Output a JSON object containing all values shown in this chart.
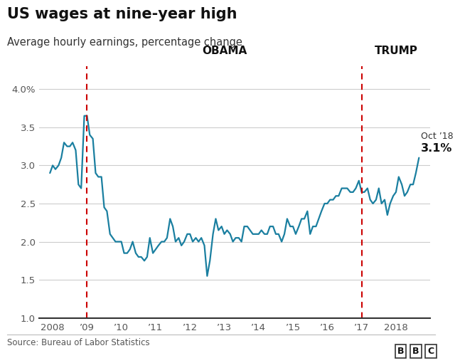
{
  "title": "US wages at nine-year high",
  "subtitle": "Average hourly earnings, percentage change",
  "source": "Source: Bureau of Labor Statistics",
  "bbc_logo": "BBC",
  "line_color": "#1a7fa0",
  "line_width": 1.6,
  "obama_line_x": 2009.0,
  "trump_line_x": 2017.0,
  "vline_color": "#cc0000",
  "annotation_label": "Oct ’18",
  "annotation_value": "3.1%",
  "ylim": [
    1.0,
    4.3
  ],
  "yticks": [
    1.0,
    1.5,
    2.0,
    2.5,
    3.0,
    3.5,
    4.0
  ],
  "ytick_labels": [
    "1.0",
    "1.5",
    "2.0",
    "2.5",
    "3.0",
    "3.5",
    "4.0%"
  ],
  "xtick_positions": [
    2008,
    2009,
    2010,
    2011,
    2012,
    2013,
    2014,
    2015,
    2016,
    2017,
    2018
  ],
  "xtick_labels": [
    "2008",
    "’09",
    "’10",
    "’11",
    "’12",
    "’13",
    "’14",
    "’15",
    "’16",
    "’17",
    "2018"
  ],
  "xlim": [
    2007.6,
    2019.0
  ],
  "background_color": "#ffffff",
  "data": [
    [
      2007.92,
      2.9
    ],
    [
      2008.0,
      3.0
    ],
    [
      2008.08,
      2.95
    ],
    [
      2008.17,
      3.0
    ],
    [
      2008.25,
      3.1
    ],
    [
      2008.33,
      3.3
    ],
    [
      2008.42,
      3.25
    ],
    [
      2008.5,
      3.25
    ],
    [
      2008.58,
      3.3
    ],
    [
      2008.67,
      3.2
    ],
    [
      2008.75,
      2.75
    ],
    [
      2008.83,
      2.7
    ],
    [
      2008.92,
      3.65
    ],
    [
      2009.0,
      3.65
    ],
    [
      2009.08,
      3.4
    ],
    [
      2009.17,
      3.35
    ],
    [
      2009.25,
      2.9
    ],
    [
      2009.33,
      2.85
    ],
    [
      2009.42,
      2.85
    ],
    [
      2009.5,
      2.45
    ],
    [
      2009.58,
      2.4
    ],
    [
      2009.67,
      2.1
    ],
    [
      2009.75,
      2.05
    ],
    [
      2009.83,
      2.0
    ],
    [
      2009.92,
      2.0
    ],
    [
      2010.0,
      2.0
    ],
    [
      2010.08,
      1.85
    ],
    [
      2010.17,
      1.85
    ],
    [
      2010.25,
      1.9
    ],
    [
      2010.33,
      2.0
    ],
    [
      2010.42,
      1.85
    ],
    [
      2010.5,
      1.8
    ],
    [
      2010.58,
      1.8
    ],
    [
      2010.67,
      1.75
    ],
    [
      2010.75,
      1.8
    ],
    [
      2010.83,
      2.05
    ],
    [
      2010.92,
      1.85
    ],
    [
      2011.0,
      1.9
    ],
    [
      2011.08,
      1.95
    ],
    [
      2011.17,
      2.0
    ],
    [
      2011.25,
      2.0
    ],
    [
      2011.33,
      2.05
    ],
    [
      2011.42,
      2.3
    ],
    [
      2011.5,
      2.2
    ],
    [
      2011.58,
      2.0
    ],
    [
      2011.67,
      2.05
    ],
    [
      2011.75,
      1.95
    ],
    [
      2011.83,
      2.0
    ],
    [
      2011.92,
      2.1
    ],
    [
      2012.0,
      2.1
    ],
    [
      2012.08,
      2.0
    ],
    [
      2012.17,
      2.05
    ],
    [
      2012.25,
      2.0
    ],
    [
      2012.33,
      2.05
    ],
    [
      2012.42,
      1.95
    ],
    [
      2012.5,
      1.55
    ],
    [
      2012.58,
      1.75
    ],
    [
      2012.67,
      2.1
    ],
    [
      2012.75,
      2.3
    ],
    [
      2012.83,
      2.15
    ],
    [
      2012.92,
      2.2
    ],
    [
      2013.0,
      2.1
    ],
    [
      2013.08,
      2.15
    ],
    [
      2013.17,
      2.1
    ],
    [
      2013.25,
      2.0
    ],
    [
      2013.33,
      2.05
    ],
    [
      2013.42,
      2.05
    ],
    [
      2013.5,
      2.0
    ],
    [
      2013.58,
      2.2
    ],
    [
      2013.67,
      2.2
    ],
    [
      2013.75,
      2.15
    ],
    [
      2013.83,
      2.1
    ],
    [
      2013.92,
      2.1
    ],
    [
      2014.0,
      2.1
    ],
    [
      2014.08,
      2.15
    ],
    [
      2014.17,
      2.1
    ],
    [
      2014.25,
      2.1
    ],
    [
      2014.33,
      2.2
    ],
    [
      2014.42,
      2.2
    ],
    [
      2014.5,
      2.1
    ],
    [
      2014.58,
      2.1
    ],
    [
      2014.67,
      2.0
    ],
    [
      2014.75,
      2.1
    ],
    [
      2014.83,
      2.3
    ],
    [
      2014.92,
      2.2
    ],
    [
      2015.0,
      2.2
    ],
    [
      2015.08,
      2.1
    ],
    [
      2015.17,
      2.2
    ],
    [
      2015.25,
      2.3
    ],
    [
      2015.33,
      2.3
    ],
    [
      2015.42,
      2.4
    ],
    [
      2015.5,
      2.1
    ],
    [
      2015.58,
      2.2
    ],
    [
      2015.67,
      2.2
    ],
    [
      2015.75,
      2.3
    ],
    [
      2015.83,
      2.4
    ],
    [
      2015.92,
      2.5
    ],
    [
      2016.0,
      2.5
    ],
    [
      2016.08,
      2.55
    ],
    [
      2016.17,
      2.55
    ],
    [
      2016.25,
      2.6
    ],
    [
      2016.33,
      2.6
    ],
    [
      2016.42,
      2.7
    ],
    [
      2016.5,
      2.7
    ],
    [
      2016.58,
      2.7
    ],
    [
      2016.67,
      2.65
    ],
    [
      2016.75,
      2.65
    ],
    [
      2016.83,
      2.7
    ],
    [
      2016.92,
      2.8
    ],
    [
      2017.0,
      2.65
    ],
    [
      2017.08,
      2.65
    ],
    [
      2017.17,
      2.7
    ],
    [
      2017.25,
      2.55
    ],
    [
      2017.33,
      2.5
    ],
    [
      2017.42,
      2.55
    ],
    [
      2017.5,
      2.7
    ],
    [
      2017.58,
      2.5
    ],
    [
      2017.67,
      2.55
    ],
    [
      2017.75,
      2.35
    ],
    [
      2017.83,
      2.5
    ],
    [
      2017.92,
      2.6
    ],
    [
      2018.0,
      2.65
    ],
    [
      2018.08,
      2.85
    ],
    [
      2018.17,
      2.75
    ],
    [
      2018.25,
      2.6
    ],
    [
      2018.33,
      2.65
    ],
    [
      2018.42,
      2.75
    ],
    [
      2018.5,
      2.75
    ],
    [
      2018.58,
      2.9
    ],
    [
      2018.67,
      3.1
    ]
  ]
}
